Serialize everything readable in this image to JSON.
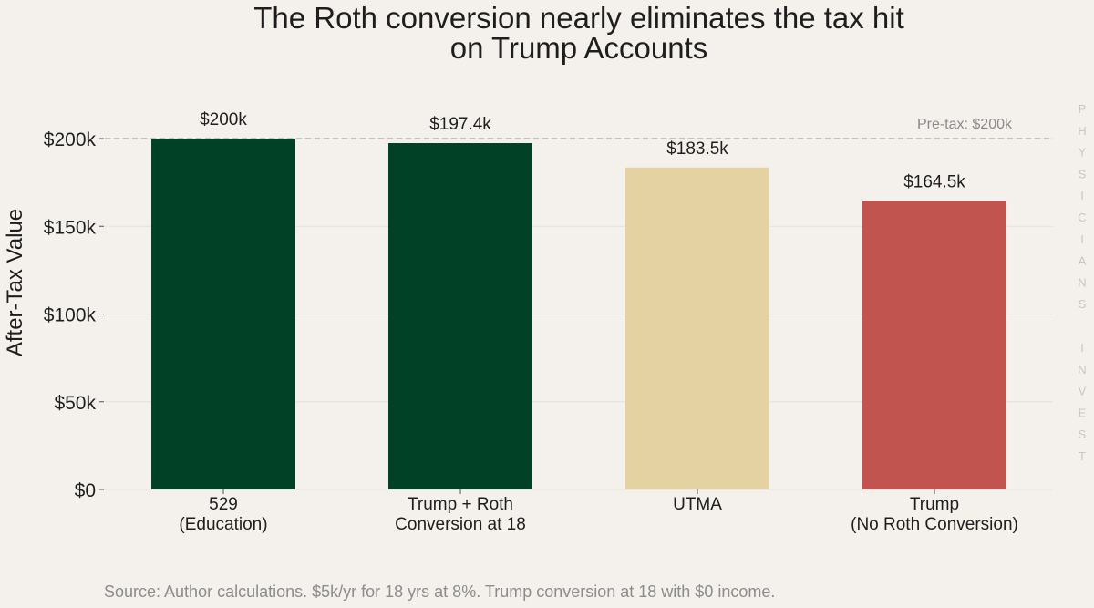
{
  "chart_data": {
    "type": "bar",
    "title_lines": [
      "The Roth conversion nearly eliminates the tax hit",
      "on Trump Accounts"
    ],
    "ylabel": "After-Tax Value",
    "xlabel": "",
    "ylim": [
      0,
      200000
    ],
    "yticks": [
      {
        "value": 0,
        "label": "$0"
      },
      {
        "value": 50000,
        "label": "$50k"
      },
      {
        "value": 100000,
        "label": "$100k"
      },
      {
        "value": 150000,
        "label": "$150k"
      },
      {
        "value": 200000,
        "label": "$200k"
      }
    ],
    "categories": [
      [
        "529",
        "(Education)"
      ],
      [
        "Trump + Roth",
        "Conversion at 18"
      ],
      [
        "UTMA"
      ],
      [
        "Trump",
        "(No Roth Conversion)"
      ]
    ],
    "values": [
      200000,
      197400,
      183500,
      164500
    ],
    "value_labels": [
      "$200k",
      "$197.4k",
      "$183.5k",
      "$164.5k"
    ],
    "bar_colors": [
      "#014226",
      "#014226",
      "#e4d2a3",
      "#c25450"
    ],
    "reference_line": {
      "value": 200000,
      "label": "Pre-tax: $200k",
      "color": "#b3b0ab",
      "style": "dashed"
    },
    "grid": true,
    "grid_axis": "y",
    "legend": "none",
    "source": "Source: Author calculations. $5k/yr for 18 yrs at 8%. Trump conversion at 18 with $0 income.",
    "watermark": "PHYSICIANS INVEST"
  },
  "colors": {
    "background": "#f4f1ec",
    "grid": "#e3e0da",
    "text": "#1e1e1e",
    "muted": "#8c8c8c"
  }
}
